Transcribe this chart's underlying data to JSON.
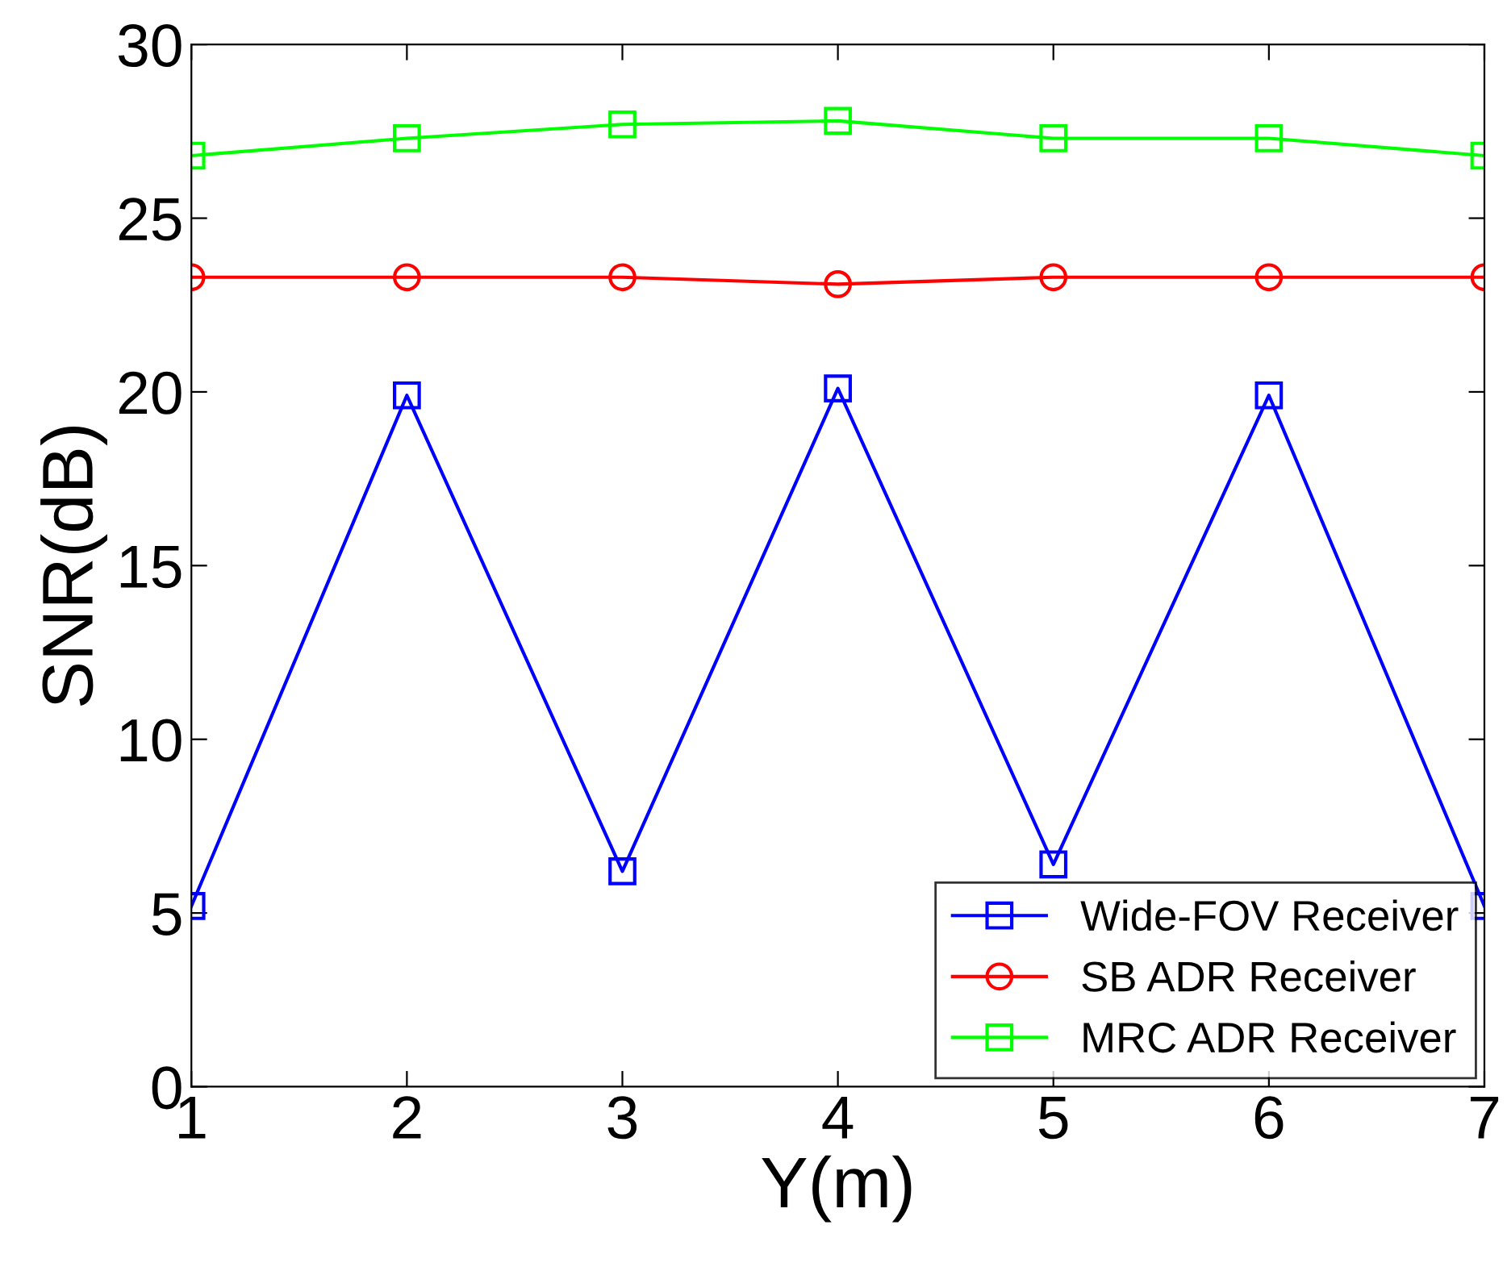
{
  "chart_data": {
    "type": "line",
    "xlabel": "Y(m)",
    "ylabel": "SNR(dB)",
    "x": [
      1,
      2,
      3,
      4,
      5,
      6,
      7
    ],
    "series": [
      {
        "name": "Wide-FOV Receiver",
        "color": "#0000ff",
        "marker": "square",
        "values": [
          5.2,
          19.9,
          6.2,
          20.1,
          6.4,
          19.9,
          5.2
        ]
      },
      {
        "name": "SB ADR Receiver",
        "color": "#ff0000",
        "marker": "circle",
        "values": [
          23.3,
          23.3,
          23.3,
          23.1,
          23.3,
          23.3,
          23.3
        ]
      },
      {
        "name": "MRC ADR Receiver",
        "color": "#00ff00",
        "marker": "square",
        "values": [
          26.8,
          27.3,
          27.7,
          27.8,
          27.3,
          27.3,
          26.8
        ]
      }
    ],
    "xlim": [
      1,
      7
    ],
    "ylim": [
      0,
      30
    ],
    "xticks": [
      1,
      2,
      3,
      4,
      5,
      6,
      7
    ],
    "yticks": [
      0,
      5,
      10,
      15,
      20,
      25,
      30
    ],
    "grid": false,
    "legend": "bottom right",
    "line_style": "solid"
  }
}
